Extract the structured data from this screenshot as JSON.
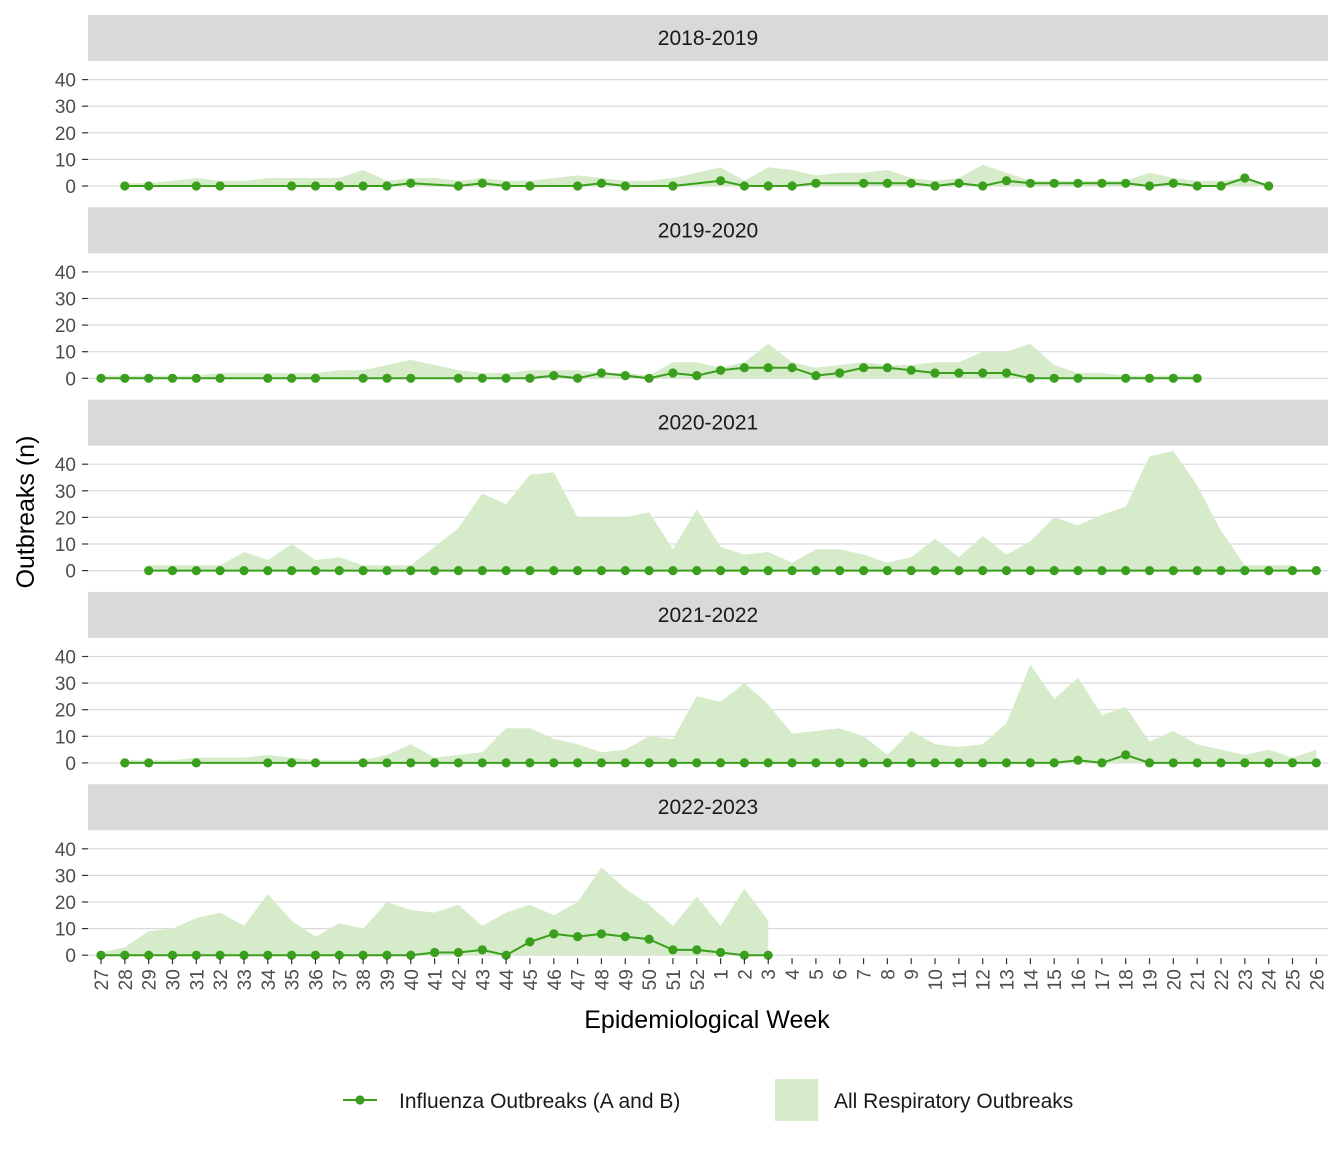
{
  "chart_data": {
    "type": "line",
    "title": "",
    "xlabel": "Epidemiological Week",
    "ylabel": "Outbreaks (n)",
    "ylim": [
      0,
      45
    ],
    "yticks": [
      0,
      10,
      20,
      30,
      40
    ],
    "grid": true,
    "legend_position": "bottom",
    "colors": {
      "influenza": "#3a9f1c",
      "respiratory_fill": "#d5ebc9",
      "strip": "#d9d9d9",
      "grid": "#d9d9d9"
    },
    "categories": [
      "27",
      "28",
      "29",
      "30",
      "31",
      "32",
      "33",
      "34",
      "35",
      "36",
      "37",
      "38",
      "39",
      "40",
      "41",
      "42",
      "43",
      "44",
      "45",
      "46",
      "47",
      "48",
      "49",
      "50",
      "51",
      "52",
      "1",
      "2",
      "3",
      "4",
      "5",
      "6",
      "7",
      "8",
      "9",
      "10",
      "11",
      "12",
      "13",
      "14",
      "15",
      "16",
      "17",
      "18",
      "19",
      "20",
      "21",
      "22",
      "23",
      "24",
      "25",
      "26"
    ],
    "legend": [
      {
        "key": "influenza",
        "label": "Influenza Outbreaks (A and B)"
      },
      {
        "key": "respiratory",
        "label": "All Respiratory Outbreaks"
      }
    ],
    "panels": [
      {
        "season": "2018-2019",
        "respiratory": [
          null,
          1,
          1,
          2,
          3,
          2,
          2,
          3,
          3,
          3,
          3,
          6,
          2,
          3,
          3,
          2,
          3,
          2,
          2,
          3,
          4,
          3,
          2,
          2,
          3,
          5,
          7,
          2,
          7,
          6,
          4,
          5,
          5,
          6,
          3,
          2,
          3,
          8,
          5,
          2,
          2,
          2,
          2,
          2,
          5,
          3,
          2,
          2,
          3,
          0,
          null,
          null
        ],
        "influenza": [
          null,
          0,
          0,
          null,
          0,
          0,
          null,
          null,
          0,
          0,
          0,
          0,
          0,
          1,
          null,
          0,
          1,
          0,
          0,
          null,
          0,
          1,
          0,
          null,
          0,
          null,
          2,
          0,
          0,
          0,
          1,
          null,
          1,
          1,
          1,
          0,
          1,
          0,
          2,
          1,
          1,
          1,
          1,
          1,
          0,
          1,
          0,
          0,
          3,
          0,
          null,
          null
        ]
      },
      {
        "season": "2019-2020",
        "respiratory": [
          1,
          1,
          1,
          1,
          1,
          2,
          2,
          2,
          2,
          2,
          3,
          3,
          5,
          7,
          5,
          3,
          2,
          2,
          3,
          3,
          3,
          2,
          2,
          1,
          6,
          6,
          4,
          6,
          13,
          6,
          4,
          5,
          6,
          5,
          5,
          6,
          6,
          10,
          10,
          13,
          5,
          2,
          2,
          1,
          1,
          1,
          1,
          null,
          null,
          null,
          null,
          null
        ],
        "influenza": [
          0,
          0,
          0,
          0,
          0,
          0,
          null,
          0,
          0,
          0,
          null,
          0,
          0,
          0,
          null,
          0,
          0,
          0,
          0,
          1,
          0,
          2,
          1,
          0,
          2,
          1,
          3,
          4,
          4,
          4,
          1,
          2,
          4,
          4,
          3,
          2,
          2,
          2,
          2,
          0,
          0,
          0,
          null,
          0,
          0,
          0,
          0,
          null,
          null,
          null,
          null,
          null
        ]
      },
      {
        "season": "2020-2021",
        "respiratory": [
          null,
          null,
          2,
          2,
          2,
          2,
          7,
          4,
          10,
          4,
          5,
          2,
          2,
          2,
          9,
          16,
          29,
          25,
          36,
          37,
          20,
          20,
          20,
          22,
          8,
          23,
          9,
          6,
          7,
          3,
          8,
          8,
          6,
          3,
          5,
          12,
          5,
          13,
          6,
          11,
          20,
          17,
          21,
          24,
          43,
          45,
          32,
          15,
          2,
          2,
          2,
          null
        ],
        "influenza": [
          null,
          null,
          0,
          0,
          0,
          0,
          0,
          0,
          0,
          0,
          0,
          0,
          0,
          0,
          0,
          0,
          0,
          0,
          0,
          0,
          0,
          0,
          0,
          0,
          0,
          0,
          0,
          0,
          0,
          0,
          0,
          0,
          0,
          0,
          0,
          0,
          0,
          0,
          0,
          0,
          0,
          0,
          0,
          0,
          0,
          0,
          0,
          0,
          0,
          0,
          0,
          0
        ]
      },
      {
        "season": "2021-2022",
        "respiratory": [
          null,
          1,
          1,
          1,
          2,
          2,
          2,
          3,
          2,
          1,
          1,
          1,
          3,
          7,
          2,
          3,
          4,
          13,
          13,
          9,
          7,
          4,
          5,
          10,
          9,
          25,
          23,
          30,
          22,
          11,
          12,
          13,
          10,
          3,
          12,
          7,
          6,
          7,
          15,
          37,
          24,
          32,
          18,
          21,
          8,
          12,
          7,
          5,
          3,
          5,
          2,
          5
        ],
        "influenza": [
          null,
          0,
          0,
          null,
          0,
          null,
          null,
          0,
          0,
          0,
          null,
          0,
          0,
          0,
          0,
          0,
          0,
          0,
          0,
          0,
          0,
          0,
          0,
          0,
          0,
          0,
          0,
          0,
          0,
          0,
          0,
          0,
          0,
          0,
          0,
          0,
          0,
          0,
          0,
          0,
          0,
          1,
          0,
          3,
          0,
          0,
          0,
          0,
          0,
          0,
          0,
          0
        ]
      },
      {
        "season": "2022-2023",
        "respiratory": [
          1,
          3,
          9,
          10,
          14,
          16,
          11,
          23,
          13,
          7,
          12,
          10,
          20,
          17,
          16,
          19,
          11,
          16,
          19,
          15,
          20,
          33,
          25,
          19,
          11,
          22,
          11,
          25,
          13,
          null,
          null,
          null,
          null,
          null,
          null,
          null,
          null,
          null,
          null,
          null,
          null,
          null,
          null,
          null,
          null,
          null,
          null,
          null,
          null,
          null,
          null,
          null
        ],
        "influenza": [
          0,
          0,
          0,
          0,
          0,
          0,
          0,
          0,
          0,
          0,
          0,
          0,
          0,
          0,
          1,
          1,
          2,
          0,
          5,
          8,
          7,
          8,
          7,
          6,
          2,
          2,
          1,
          0,
          0,
          null,
          null,
          null,
          null,
          null,
          null,
          null,
          null,
          null,
          null,
          null,
          null,
          null,
          null,
          null,
          null,
          null,
          null,
          null,
          null,
          null,
          null,
          null
        ]
      }
    ]
  }
}
